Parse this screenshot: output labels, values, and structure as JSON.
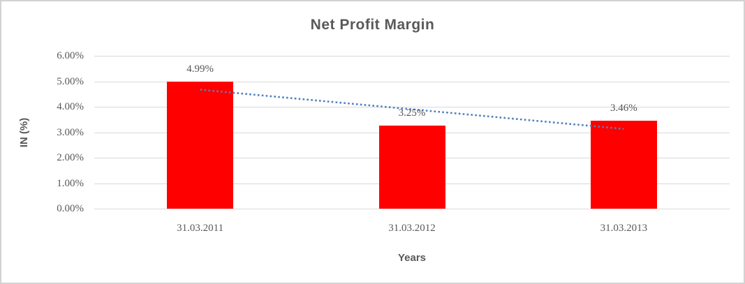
{
  "chart_data": {
    "type": "bar",
    "title": "Net Profit Margin",
    "categories": [
      "31.03.2011",
      "31.03.2012",
      "31.03.2013"
    ],
    "values": [
      4.99,
      3.25,
      3.46
    ],
    "data_labels": [
      "4.99%",
      "3.25%",
      "3.46%"
    ],
    "xlabel": "Years",
    "ylabel": "IN (%)",
    "ylim": [
      0,
      6
    ],
    "ytick_step": 1,
    "ytick_labels": [
      "0.00%",
      "1.00%",
      "2.00%",
      "3.00%",
      "4.00%",
      "5.00%",
      "6.00%"
    ],
    "grid": true,
    "legend": "none",
    "bar_color": "#ff0000",
    "text_color": "#595959",
    "gridline_color": "#d9d9d9",
    "trendline": {
      "type": "linear",
      "style": "dotted",
      "color": "#4e81bd",
      "start_value": 4.67,
      "end_value": 3.13
    }
  }
}
